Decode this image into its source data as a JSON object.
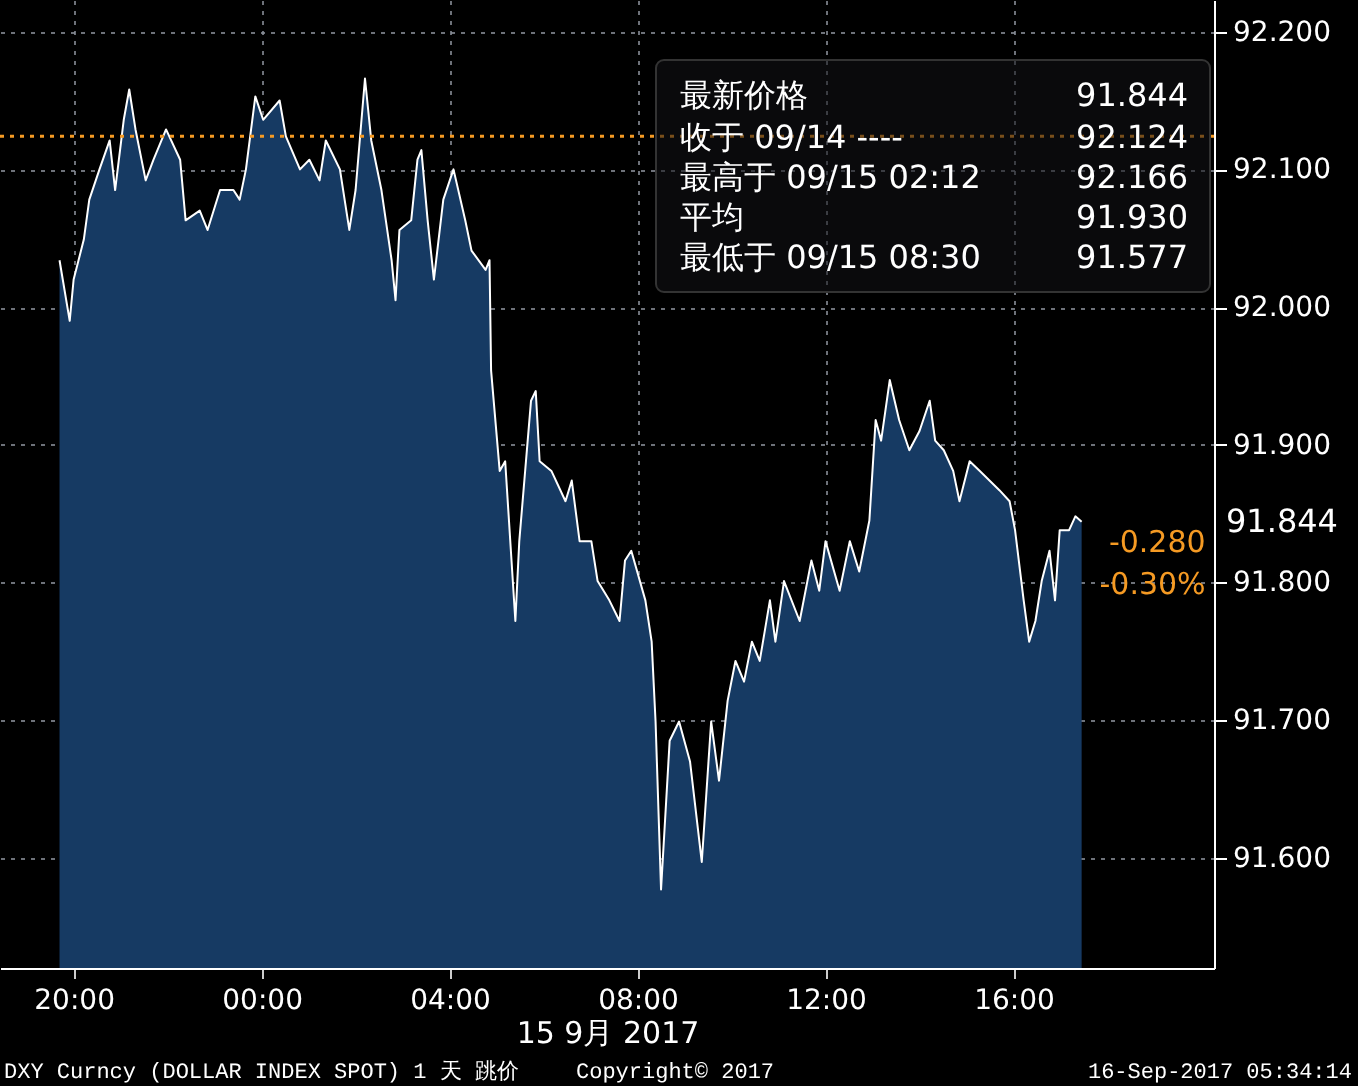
{
  "chart_data": {
    "type": "area",
    "xlabel": "15 9月 2017",
    "x": [
      "2017-09-14T19:42",
      "2017-09-14T19:55",
      "2017-09-14T20:00",
      "2017-09-14T20:13",
      "2017-09-14T20:20",
      "2017-09-14T20:33",
      "2017-09-14T20:46",
      "2017-09-14T20:53",
      "2017-09-14T21:04",
      "2017-09-14T21:11",
      "2017-09-14T21:19",
      "2017-09-14T21:32",
      "2017-09-14T21:42",
      "2017-09-14T21:58",
      "2017-09-14T22:16",
      "2017-09-14T22:23",
      "2017-09-14T22:41",
      "2017-09-14T22:51",
      "2017-09-14T23:07",
      "2017-09-14T23:24",
      "2017-09-14T23:32",
      "2017-09-14T23:40",
      "2017-09-14T23:52",
      "2017-09-15T00:02",
      "2017-09-15T00:23",
      "2017-09-15T00:31",
      "2017-09-15T00:49",
      "2017-09-15T01:01",
      "2017-09-15T01:14",
      "2017-09-15T01:22",
      "2017-09-15T01:40",
      "2017-09-15T01:52",
      "2017-09-15T02:00",
      "2017-09-15T02:12",
      "2017-09-15T02:20",
      "2017-09-15T02:33",
      "2017-09-15T02:46",
      "2017-09-15T02:51",
      "2017-09-15T02:56",
      "2017-09-15T03:11",
      "2017-09-15T03:19",
      "2017-09-15T03:24",
      "2017-09-15T03:32",
      "2017-09-15T03:40",
      "2017-09-15T03:52",
      "2017-09-15T04:05",
      "2017-09-15T04:20",
      "2017-09-15T04:28",
      "2017-09-15T04:46",
      "2017-09-15T04:51",
      "2017-09-15T04:53",
      "2017-09-15T05:04",
      "2017-09-15T05:11",
      "2017-09-15T05:24",
      "2017-09-15T05:29",
      "2017-09-15T05:44",
      "2017-09-15T05:50",
      "2017-09-15T05:55",
      "2017-09-15T06:10",
      "2017-09-15T06:28",
      "2017-09-15T06:36",
      "2017-09-15T06:46",
      "2017-09-15T07:01",
      "2017-09-15T07:09",
      "2017-09-15T07:24",
      "2017-09-15T07:37",
      "2017-09-15T07:44",
      "2017-09-15T07:52",
      "2017-09-15T08:10",
      "2017-09-15T08:18",
      "2017-09-15T08:23",
      "2017-09-15T08:30",
      "2017-09-15T08:41",
      "2017-09-15T08:53",
      "2017-09-15T09:07",
      "2017-09-15T09:22",
      "2017-09-15T09:34",
      "2017-09-15T09:44",
      "2017-09-15T09:55",
      "2017-09-15T10:05",
      "2017-09-15T10:16",
      "2017-09-15T10:26",
      "2017-09-15T10:36",
      "2017-09-15T10:49",
      "2017-09-15T10:56",
      "2017-09-15T11:07",
      "2017-09-15T11:27",
      "2017-09-15T11:42",
      "2017-09-15T11:52",
      "2017-09-15T12:00",
      "2017-09-15T12:18",
      "2017-09-15T12:31",
      "2017-09-15T12:43",
      "2017-09-15T12:56",
      "2017-09-15T13:04",
      "2017-09-15T13:11",
      "2017-09-15T13:22",
      "2017-09-15T13:34",
      "2017-09-15T13:47",
      "2017-09-15T14:00",
      "2017-09-15T14:13",
      "2017-09-15T14:20",
      "2017-09-15T14:31",
      "2017-09-15T14:43",
      "2017-09-15T14:51",
      "2017-09-15T15:04",
      "2017-09-15T15:17",
      "2017-09-15T15:42",
      "2017-09-15T15:55",
      "2017-09-15T16:02",
      "2017-09-15T16:13",
      "2017-09-15T16:20",
      "2017-09-15T16:28",
      "2017-09-15T16:36",
      "2017-09-15T16:46",
      "2017-09-15T16:53",
      "2017-09-15T16:59",
      "2017-09-15T17:11",
      "2017-09-15T17:19",
      "2017-09-15T17:27"
    ],
    "series": [
      {
        "color": "#163a63",
        "values": [
          92.034,
          91.99,
          92.02,
          92.049,
          92.078,
          92.1,
          92.121,
          92.085,
          92.136,
          92.158,
          92.129,
          92.092,
          92.107,
          92.129,
          92.107,
          92.063,
          92.07,
          92.056,
          92.085,
          92.085,
          92.078,
          92.1,
          92.153,
          92.136,
          92.15,
          92.124,
          92.1,
          92.107,
          92.092,
          92.121,
          92.1,
          92.056,
          92.085,
          92.166,
          92.121,
          92.085,
          92.034,
          92.005,
          92.056,
          92.063,
          92.107,
          92.114,
          92.063,
          92.02,
          92.078,
          92.1,
          92.063,
          92.041,
          92.027,
          92.034,
          91.954,
          91.881,
          91.888,
          91.772,
          91.83,
          91.932,
          91.939,
          91.888,
          91.881,
          91.859,
          91.874,
          91.83,
          91.83,
          91.801,
          91.787,
          91.772,
          91.816,
          91.823,
          91.787,
          91.757,
          91.699,
          91.577,
          91.685,
          91.699,
          91.67,
          91.597,
          91.699,
          91.656,
          91.714,
          91.743,
          91.728,
          91.757,
          91.743,
          91.787,
          91.757,
          91.801,
          91.772,
          91.816,
          91.794,
          91.83,
          91.794,
          91.83,
          91.808,
          91.845,
          91.918,
          91.903,
          91.947,
          91.918,
          91.896,
          91.91,
          91.932,
          91.903,
          91.896,
          91.881,
          91.859,
          91.888,
          91.881,
          91.867,
          91.859,
          91.838,
          91.787,
          91.757,
          91.772,
          91.801,
          91.823,
          91.787,
          91.838,
          91.838,
          91.848,
          91.844
        ]
      }
    ],
    "xlim": [
      "2017-09-14T18:26",
      "2017-09-15T20:16"
    ],
    "xticks": [
      {
        "value": "2017-09-14T20:00",
        "label": "20:00"
      },
      {
        "value": "2017-09-15T00:00",
        "label": "00:00"
      },
      {
        "value": "2017-09-15T04:00",
        "label": "04:00"
      },
      {
        "value": "2017-09-15T08:00",
        "label": "08:00"
      },
      {
        "value": "2017-09-15T12:00",
        "label": "12:00"
      },
      {
        "value": "2017-09-15T16:00",
        "label": "16:00"
      }
    ],
    "ylim": [
      91.52,
      92.223
    ],
    "yticks": [
      {
        "value": 91.6,
        "label": "91.600"
      },
      {
        "value": 91.7,
        "label": "91.700"
      },
      {
        "value": 91.8,
        "label": "91.800"
      },
      {
        "value": 91.9,
        "label": "91.900"
      },
      {
        "value": 92.0,
        "label": "92.000"
      },
      {
        "value": 92.1,
        "label": "92.100"
      },
      {
        "value": 92.2,
        "label": "92.200"
      }
    ],
    "grid": true,
    "ref_lines": [
      {
        "axis": "y",
        "value": 92.124,
        "color": "#f59a23",
        "line_style": "dotted"
      }
    ],
    "annotations": [
      "最新价格 91.844",
      "收于 09/14 ---- 92.124",
      "最高于 09/15 02:12 92.166",
      "平均 91.930",
      "最低于 09/15 08:30 91.577",
      "DXY Curncy (DOLLAR INDEX SPOT) 1 天  跳价",
      "Copyright© 2017",
      "16-Sep-2017 05:34:14",
      "91.844",
      {
        "text": "-0.280",
        "x": "2017-09-15T17:27",
        "y": 91.844
      },
      {
        "text": "-0.30%",
        "x": "2017-09-15T17:27",
        "y": 91.844
      }
    ]
  }
}
